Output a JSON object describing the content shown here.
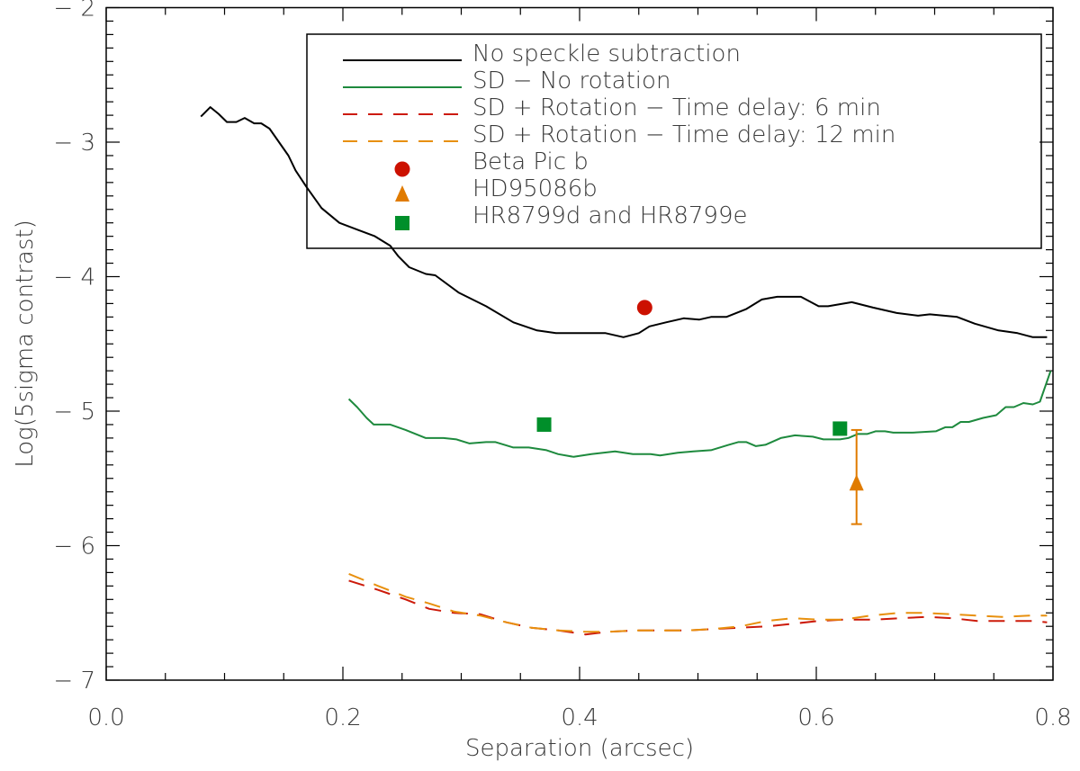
{
  "chart_data": {
    "type": "line",
    "title": "",
    "xlabel": "Separation (arcsec)",
    "ylabel": "Log(5sigma contrast)",
    "xlim": [
      0.0,
      0.8
    ],
    "ylim": [
      -7,
      -2
    ],
    "x_ticks": [
      "0.0",
      "0.2",
      "0.4",
      "0.6",
      "0.8"
    ],
    "y_ticks": [
      "-2",
      "-3",
      "-4",
      "-5",
      "-6",
      "-7"
    ],
    "grid": false,
    "legend_placement": "top-right",
    "series": [
      {
        "name": "No speckle subtraction",
        "color": "#000000",
        "style": "solid",
        "x": [
          0.08,
          0.088,
          0.095,
          0.102,
          0.11,
          0.117,
          0.125,
          0.131,
          0.138,
          0.146,
          0.154,
          0.16,
          0.169,
          0.182,
          0.197,
          0.212,
          0.227,
          0.24,
          0.247,
          0.256,
          0.27,
          0.278,
          0.298,
          0.321,
          0.344,
          0.364,
          0.38,
          0.395,
          0.412,
          0.422,
          0.437,
          0.45,
          0.459,
          0.473,
          0.488,
          0.501,
          0.511,
          0.524,
          0.541,
          0.554,
          0.567,
          0.587,
          0.602,
          0.61,
          0.63,
          0.648,
          0.668,
          0.686,
          0.696,
          0.719,
          0.734,
          0.754,
          0.77,
          0.783,
          0.79,
          0.795
        ],
        "y": [
          -2.81,
          -2.74,
          -2.79,
          -2.85,
          -2.85,
          -2.82,
          -2.86,
          -2.86,
          -2.9,
          -3.0,
          -3.1,
          -3.21,
          -3.33,
          -3.49,
          -3.6,
          -3.65,
          -3.7,
          -3.77,
          -3.85,
          -3.93,
          -3.98,
          -3.99,
          -4.12,
          -4.22,
          -4.34,
          -4.4,
          -4.42,
          -4.42,
          -4.42,
          -4.42,
          -4.45,
          -4.42,
          -4.37,
          -4.34,
          -4.31,
          -4.32,
          -4.3,
          -4.3,
          -4.24,
          -4.17,
          -4.15,
          -4.15,
          -4.22,
          -4.22,
          -4.19,
          -4.23,
          -4.27,
          -4.29,
          -4.28,
          -4.3,
          -4.35,
          -4.4,
          -4.42,
          -4.45,
          -4.45,
          -4.45
        ]
      },
      {
        "name": "SD - No rotation",
        "color": "#1e8a3e",
        "style": "solid",
        "x": [
          0.205,
          0.212,
          0.22,
          0.226,
          0.24,
          0.253,
          0.27,
          0.285,
          0.296,
          0.307,
          0.321,
          0.329,
          0.344,
          0.357,
          0.372,
          0.382,
          0.395,
          0.41,
          0.43,
          0.445,
          0.46,
          0.468,
          0.483,
          0.496,
          0.511,
          0.526,
          0.534,
          0.541,
          0.549,
          0.557,
          0.57,
          0.582,
          0.597,
          0.606,
          0.62,
          0.627,
          0.635,
          0.643,
          0.65,
          0.658,
          0.665,
          0.681,
          0.701,
          0.709,
          0.715,
          0.722,
          0.729,
          0.741,
          0.752,
          0.76,
          0.767,
          0.775,
          0.783,
          0.789,
          0.798
        ],
        "y": [
          -4.91,
          -4.97,
          -5.05,
          -5.1,
          -5.1,
          -5.14,
          -5.2,
          -5.2,
          -5.21,
          -5.24,
          -5.23,
          -5.23,
          -5.27,
          -5.27,
          -5.29,
          -5.32,
          -5.34,
          -5.32,
          -5.3,
          -5.32,
          -5.32,
          -5.33,
          -5.31,
          -5.3,
          -5.29,
          -5.25,
          -5.23,
          -5.23,
          -5.26,
          -5.25,
          -5.2,
          -5.18,
          -5.19,
          -5.21,
          -5.21,
          -5.2,
          -5.17,
          -5.17,
          -5.15,
          -5.15,
          -5.16,
          -5.16,
          -5.15,
          -5.12,
          -5.12,
          -5.08,
          -5.08,
          -5.05,
          -5.03,
          -4.97,
          -4.97,
          -4.94,
          -4.95,
          -4.93,
          -4.7
        ]
      },
      {
        "name": "SD + Rotation - Time delay: 6 min",
        "color": "#cc1a0a",
        "style": "dashed",
        "x": [
          0.205,
          0.23,
          0.253,
          0.273,
          0.294,
          0.316,
          0.338,
          0.359,
          0.382,
          0.405,
          0.425,
          0.448,
          0.471,
          0.492,
          0.513,
          0.536,
          0.559,
          0.581,
          0.602,
          0.623,
          0.65,
          0.671,
          0.694,
          0.715,
          0.736,
          0.759,
          0.783,
          0.795
        ],
        "y": [
          -6.26,
          -6.33,
          -6.4,
          -6.47,
          -6.5,
          -6.51,
          -6.57,
          -6.61,
          -6.63,
          -6.66,
          -6.64,
          -6.63,
          -6.63,
          -6.63,
          -6.62,
          -6.61,
          -6.6,
          -6.58,
          -6.56,
          -6.55,
          -6.55,
          -6.54,
          -6.53,
          -6.54,
          -6.56,
          -6.56,
          -6.56,
          -6.57
        ]
      },
      {
        "name": "SD + Rotation - Time delay: 12 min",
        "color": "#e8900e",
        "style": "dashed",
        "x": [
          0.205,
          0.23,
          0.253,
          0.273,
          0.294,
          0.316,
          0.338,
          0.359,
          0.382,
          0.405,
          0.425,
          0.448,
          0.471,
          0.492,
          0.513,
          0.536,
          0.558,
          0.58,
          0.602,
          0.623,
          0.646,
          0.669,
          0.691,
          0.714,
          0.735,
          0.757,
          0.781,
          0.795
        ],
        "y": [
          -6.21,
          -6.3,
          -6.38,
          -6.43,
          -6.49,
          -6.52,
          -6.57,
          -6.61,
          -6.63,
          -6.64,
          -6.64,
          -6.63,
          -6.63,
          -6.63,
          -6.62,
          -6.6,
          -6.56,
          -6.54,
          -6.55,
          -6.55,
          -6.52,
          -6.5,
          -6.5,
          -6.51,
          -6.52,
          -6.53,
          -6.52,
          -6.52
        ]
      }
    ],
    "markers": [
      {
        "name": "Beta Pic b",
        "shape": "circle",
        "color": "#cc1100",
        "points": [
          {
            "x": 0.455,
            "y": -4.23
          }
        ]
      },
      {
        "name": "HD95086b",
        "shape": "triangle",
        "color": "#e07b00",
        "points": [
          {
            "x": 0.634,
            "y": -5.55,
            "y_err_low": -5.84,
            "y_err_high": -5.14
          }
        ]
      },
      {
        "name": "HR8799d and HR8799e",
        "shape": "square",
        "color": "#008f2a",
        "points": [
          {
            "x": 0.37,
            "y": -5.1
          },
          {
            "x": 0.62,
            "y": -5.13
          }
        ]
      }
    ]
  }
}
